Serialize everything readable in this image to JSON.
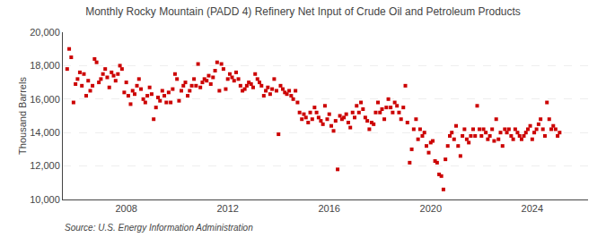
{
  "chart_data": {
    "type": "scatter",
    "title": "Monthly Rocky Mountain (PADD 4) Refinery Net Input of Crude Oil and Petroleum Products",
    "ylabel": "Thousand Barrels",
    "annotations": [
      "Source: U.S. Energy Information Administration"
    ],
    "color": "#cc0000",
    "marker": "square",
    "grid": "y",
    "xlim": [
      2005.5,
      2026.2
    ],
    "xticks": [
      2008,
      2012,
      2016,
      2020,
      2024
    ],
    "ylim": [
      10000,
      20000
    ],
    "yticks": [
      {
        "value": 10000,
        "label": "10,000"
      },
      {
        "value": 12000,
        "label": "12,000"
      },
      {
        "value": 14000,
        "label": "14,000"
      },
      {
        "value": 16000,
        "label": "16,000"
      },
      {
        "value": 18000,
        "label": "18,000"
      },
      {
        "value": 20000,
        "label": "20,000"
      }
    ],
    "x": [
      2005.67,
      2005.75,
      2005.83,
      2005.92,
      2006.0,
      2006.08,
      2006.17,
      2006.25,
      2006.33,
      2006.42,
      2006.5,
      2006.58,
      2006.67,
      2006.75,
      2006.83,
      2006.92,
      2007.0,
      2007.08,
      2007.17,
      2007.25,
      2007.33,
      2007.42,
      2007.5,
      2007.58,
      2007.67,
      2007.75,
      2007.83,
      2007.92,
      2008.0,
      2008.08,
      2008.17,
      2008.25,
      2008.33,
      2008.42,
      2008.5,
      2008.58,
      2008.67,
      2008.75,
      2008.83,
      2008.92,
      2009.0,
      2009.08,
      2009.17,
      2009.25,
      2009.33,
      2009.42,
      2009.5,
      2009.58,
      2009.67,
      2009.75,
      2009.83,
      2009.92,
      2010.0,
      2010.08,
      2010.17,
      2010.25,
      2010.33,
      2010.42,
      2010.5,
      2010.58,
      2010.67,
      2010.75,
      2010.83,
      2010.92,
      2011.0,
      2011.08,
      2011.17,
      2011.25,
      2011.33,
      2011.42,
      2011.5,
      2011.58,
      2011.67,
      2011.75,
      2011.83,
      2011.92,
      2012.0,
      2012.08,
      2012.17,
      2012.25,
      2012.33,
      2012.42,
      2012.5,
      2012.58,
      2012.67,
      2012.75,
      2012.83,
      2012.92,
      2013.0,
      2013.08,
      2013.17,
      2013.25,
      2013.33,
      2013.42,
      2013.5,
      2013.58,
      2013.67,
      2013.75,
      2013.83,
      2013.92,
      2014.0,
      2014.08,
      2014.17,
      2014.25,
      2014.33,
      2014.42,
      2014.5,
      2014.58,
      2014.67,
      2014.75,
      2014.83,
      2014.92,
      2015.0,
      2015.08,
      2015.17,
      2015.25,
      2015.33,
      2015.42,
      2015.5,
      2015.58,
      2015.67,
      2015.75,
      2015.83,
      2015.92,
      2016.0,
      2016.08,
      2016.17,
      2016.25,
      2016.33,
      2016.42,
      2016.5,
      2016.58,
      2016.67,
      2016.75,
      2016.83,
      2016.92,
      2017.0,
      2017.08,
      2017.17,
      2017.25,
      2017.33,
      2017.42,
      2017.5,
      2017.58,
      2017.67,
      2017.75,
      2017.83,
      2017.92,
      2018.0,
      2018.08,
      2018.17,
      2018.25,
      2018.33,
      2018.42,
      2018.5,
      2018.58,
      2018.67,
      2018.75,
      2018.83,
      2018.92,
      2019.0,
      2019.08,
      2019.17,
      2019.25,
      2019.33,
      2019.42,
      2019.5,
      2019.58,
      2019.67,
      2019.75,
      2019.83,
      2019.92,
      2020.0,
      2020.08,
      2020.17,
      2020.25,
      2020.33,
      2020.42,
      2020.5,
      2020.58,
      2020.67,
      2020.75,
      2020.83,
      2020.92,
      2021.0,
      2021.08,
      2021.17,
      2021.25,
      2021.33,
      2021.42,
      2021.5,
      2021.58,
      2021.67,
      2021.75,
      2021.83,
      2021.92,
      2022.0,
      2022.08,
      2022.17,
      2022.25,
      2022.33,
      2022.42,
      2022.5,
      2022.58,
      2022.67,
      2022.75,
      2022.83,
      2022.92,
      2023.0,
      2023.08,
      2023.17,
      2023.25,
      2023.33,
      2023.42,
      2023.5,
      2023.58,
      2023.67,
      2023.75,
      2023.83,
      2023.92,
      2024.0,
      2024.08,
      2024.17,
      2024.25,
      2024.33,
      2024.42,
      2024.5,
      2024.58,
      2024.67,
      2024.75,
      2024.83,
      2024.92,
      2025.0,
      2025.08
    ],
    "values": [
      17800,
      19000,
      18500,
      15800,
      16900,
      17200,
      17600,
      16800,
      17500,
      16200,
      17100,
      16500,
      16800,
      18400,
      18200,
      17000,
      17200,
      17500,
      17800,
      17300,
      16700,
      17600,
      17400,
      17100,
      17500,
      18000,
      17800,
      16400,
      17000,
      16200,
      15700,
      16500,
      16300,
      16800,
      17200,
      16600,
      16000,
      15800,
      16200,
      16700,
      16300,
      14800,
      15500,
      16100,
      15900,
      16500,
      16200,
      15800,
      16400,
      15800,
      16600,
      17500,
      17200,
      15900,
      16500,
      16800,
      17000,
      16200,
      16500,
      16800,
      17200,
      16800,
      18100,
      16700,
      17000,
      17200,
      17100,
      17400,
      16900,
      17300,
      17700,
      18200,
      16500,
      18100,
      17800,
      16600,
      17200,
      17500,
      17300,
      17100,
      17600,
      17200,
      16800,
      16500,
      16600,
      16800,
      17000,
      16900,
      16700,
      17500,
      17200,
      17000,
      16800,
      16200,
      16500,
      16700,
      16300,
      16600,
      17200,
      16500,
      13900,
      16800,
      16600,
      16400,
      16300,
      16500,
      16200,
      16000,
      16500,
      15800,
      15200,
      14800,
      15100,
      14900,
      14600,
      15200,
      14800,
      15500,
      15200,
      14900,
      14700,
      14500,
      15600,
      14800,
      15100,
      14400,
      14100,
      14700,
      11800,
      15000,
      14800,
      14900,
      15100,
      14600,
      14300,
      15200,
      14900,
      15600,
      15200,
      15800,
      15400,
      14900,
      14700,
      14200,
      14600,
      14500,
      15200,
      15800,
      15200,
      15400,
      14800,
      15500,
      16000,
      15500,
      15200,
      15800,
      15600,
      15200,
      14800,
      15500,
      16800,
      14600,
      12200,
      13000,
      14200,
      14800,
      13600,
      14200,
      13800,
      14000,
      13200,
      12800,
      13400,
      13500,
      12300,
      12200,
      11500,
      11400,
      10600,
      12400,
      13200,
      13800,
      14000,
      13600,
      14400,
      13200,
      12600,
      13800,
      14200,
      13600,
      13400,
      13800,
      14200,
      13800,
      15600,
      14200,
      13800,
      14200,
      14000,
      13600,
      13800,
      14200,
      13500,
      14800,
      13600,
      14000,
      13200,
      14200,
      14000,
      14200,
      13800,
      13600,
      14200,
      14000,
      13800,
      13600,
      13800,
      14000,
      14200,
      14400,
      13600,
      14000,
      14200,
      14500,
      14800,
      14200,
      13800,
      15800,
      14800,
      14200,
      14400,
      14200,
      13800,
      14000
    ]
  }
}
